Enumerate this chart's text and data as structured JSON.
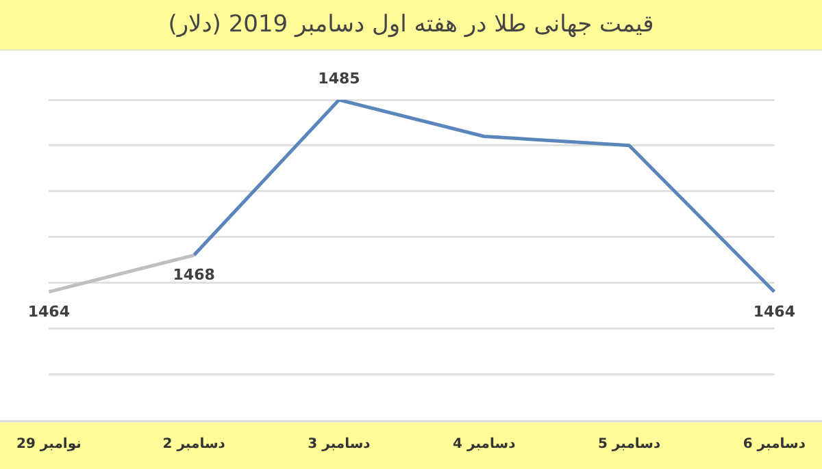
{
  "chart_data": {
    "type": "line",
    "title": "قیمت جهانی طلا در هفته اول دسامبر 2019 (دلار)",
    "categories": [
      "29 نوامبر",
      "2 دسامبر",
      "3 دسامبر",
      "4 دسامبر",
      "5 دسامبر",
      "6 دسامبر"
    ],
    "series": [
      {
        "color": "#bfbfbf",
        "values": [
          1464,
          1468,
          null,
          null,
          null,
          null
        ],
        "value_labels": [
          "1464",
          null,
          null,
          null,
          null,
          null
        ]
      },
      {
        "color": "#5b86bb",
        "values": [
          null,
          1468,
          1485,
          1481,
          1480,
          1464
        ],
        "value_labels": [
          null,
          "1468",
          "1485",
          null,
          null,
          "1464"
        ]
      }
    ],
    "ylim": [
      1450,
      1485
    ],
    "yticks": [
      {
        "value": 1455,
        "label": null
      },
      {
        "value": 1460,
        "label": null
      },
      {
        "value": 1465,
        "label": null
      },
      {
        "value": 1470,
        "label": null
      },
      {
        "value": 1475,
        "label": null
      },
      {
        "value": 1480,
        "label": null
      },
      {
        "value": 1485,
        "label": null
      }
    ],
    "grid": "y",
    "legend": false,
    "tick_labels": "x",
    "marker": "none",
    "line_style": "solid"
  }
}
